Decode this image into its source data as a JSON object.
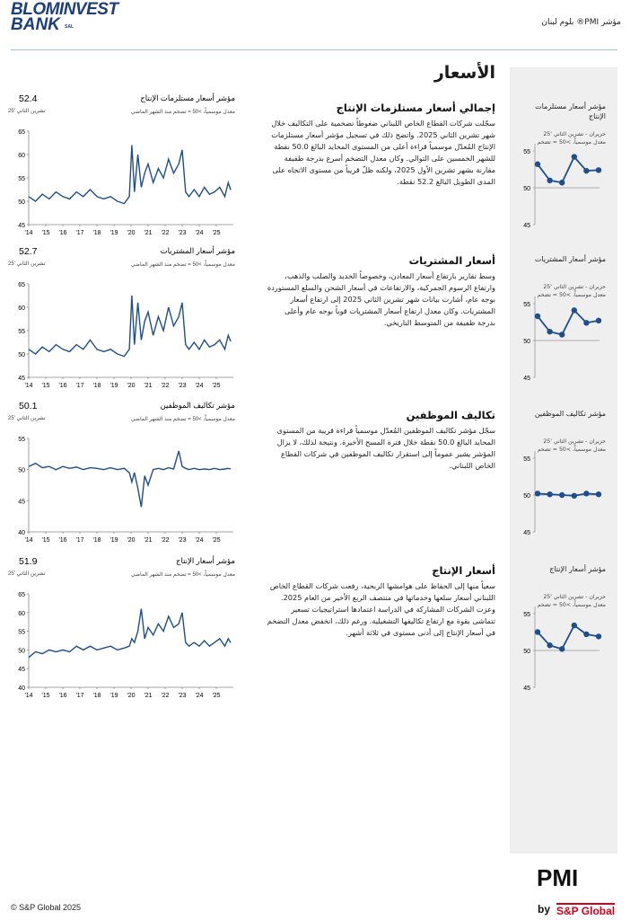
{
  "header": {
    "logo": "BLOMINVEST",
    "logo_line2": "BANK",
    "logo_suffix": "SAL",
    "title": "مؤشر PMI® بلوم لبنان"
  },
  "page_title": "الأسعار",
  "sections": [
    {
      "heading": "إجمالي أسعار مستلزمات الإنتاج",
      "text": "سجّلت شركات القطاع الخاص اللبناني ضغوطاً تضخمية على التكاليف خلال شهر تشرين الثاني 2025. واتضح ذلك في تسجيل مؤشر أسعار مستلزمات الإنتاج المُعدّل موسمياً قراءة أعلى من المستوى المحايد البالغ 50.0 نقطة للشهر الخمسين على التوالي. وكان معدل التضخم أسرع بدرجة طفيفة مقارنة بشهر تشرين الأول 2025، ولكنه ظلّ قريباً من مستوى الاتجاه على المدى الطويل البالغ 52.2 نقطة."
    },
    {
      "heading": "أسعار المشتريات",
      "text": "وسط تقارير بارتفاع أسعار المعادن، وخصوصاً الحديد والصلب والذهب، وارتفاع الرسوم الجمركية، والارتفاعات في أسعار الشحن والسلع المستوردة بوجه عام، أشارت بيانات شهر تشرين الثاني 2025 إلى ارتفاع أسعار المشتريات. وكان معدل ارتفاع أسعار المشتريات قوياً بوجه عام وأعلى بدرجة طفيفة من المتوسط التاريخي."
    },
    {
      "heading": "تكاليف الموظفين",
      "text": "سجّل مؤشر تكاليف الموظفين المُعدّل موسمياً قراءة قريبة من المستوى المحايد البالغ 50.0 نقطة خلال فترة المسح الأخيرة. ونتيجة لذلك، لا يزال المؤشر يشير عموماً إلى استقرار تكاليف الموظفين في شركات القطاع الخاص اللبناني."
    },
    {
      "heading": "أسعار الإنتاج",
      "text": "سعياً منها إلى الحفاظ على هوامشها الربحية، رفعت شركات القطاع الخاص اللبناني أسعار سلعها وخدماتها في منتصف الربع الأخير من العام 2025. وعزت الشركات المشاركة في الدراسة اعتمادها استراتيجيات تسعير تتماشى بقوة مع ارتفاع تكاليفها التشغيلية. ورغم ذلك، انخفض معدل التضخم في أسعار الإنتاج إلى أدنى مستوى في ثلاثة أشهر."
    }
  ],
  "chart_data": [
    {
      "type": "line",
      "title": "مؤشر أسعار مستلزمات الإنتاج",
      "subtitle": "معدل موسمياً، >50 = تضخم منذ الشهر الماضي",
      "latest": 52.4,
      "latest_date": "تشرين الثاني '25",
      "color": "#1f4e8c",
      "x": [
        2014.0,
        2014.4,
        2014.8,
        2015.2,
        2015.6,
        2016.0,
        2016.4,
        2016.8,
        2017.2,
        2017.6,
        2018.0,
        2018.4,
        2018.8,
        2019.2,
        2019.6,
        2019.9,
        2020.05,
        2020.2,
        2020.4,
        2020.6,
        2020.8,
        2021.0,
        2021.3,
        2021.6,
        2021.9,
        2022.2,
        2022.5,
        2022.8,
        2023.0,
        2023.2,
        2023.4,
        2023.7,
        2024.0,
        2024.3,
        2024.6,
        2024.9,
        2025.2,
        2025.5,
        2025.7,
        2025.85
      ],
      "values": [
        51,
        50,
        51.5,
        50.5,
        52,
        51,
        50.5,
        52,
        51,
        52.5,
        51,
        50.5,
        51,
        50,
        49.5,
        51,
        62,
        52,
        60,
        53,
        56,
        58,
        54,
        57,
        55,
        59,
        56,
        58,
        61,
        52,
        51,
        52.5,
        51,
        53,
        51.5,
        52,
        53,
        51,
        54,
        52.4
      ],
      "xlim": [
        2014,
        2026
      ],
      "xticks": [
        {
          "value": 2014,
          "label": "'14"
        },
        {
          "value": 2015,
          "label": "'15"
        },
        {
          "value": 2016,
          "label": "'16"
        },
        {
          "value": 2017,
          "label": "'17"
        },
        {
          "value": 2018,
          "label": "'18"
        },
        {
          "value": 2019,
          "label": "'19"
        },
        {
          "value": 2020,
          "label": "'20"
        },
        {
          "value": 2021,
          "label": "'21"
        },
        {
          "value": 2022,
          "label": "'22"
        },
        {
          "value": 2023,
          "label": "'23"
        },
        {
          "value": 2024,
          "label": "'24"
        },
        {
          "value": 2025,
          "label": "'25"
        }
      ],
      "ylim": [
        45,
        65
      ],
      "yticks": [
        45,
        50,
        55,
        60,
        65
      ]
    },
    {
      "type": "line",
      "title": "مؤشر أسعار المشتريات",
      "subtitle": "معدل موسمياً، >50 = تضخم منذ الشهر الماضي",
      "latest": 52.7,
      "latest_date": "تشرين الثاني '25",
      "color": "#1f4e8c",
      "x": [
        2014.0,
        2014.4,
        2014.8,
        2015.2,
        2015.6,
        2016.0,
        2016.4,
        2016.8,
        2017.2,
        2017.6,
        2018.0,
        2018.4,
        2018.8,
        2019.2,
        2019.6,
        2019.9,
        2020.05,
        2020.2,
        2020.4,
        2020.6,
        2020.8,
        2021.0,
        2021.3,
        2021.6,
        2021.9,
        2022.2,
        2022.5,
        2022.8,
        2023.0,
        2023.2,
        2023.4,
        2023.7,
        2024.0,
        2024.3,
        2024.6,
        2024.9,
        2025.2,
        2025.5,
        2025.7,
        2025.85
      ],
      "values": [
        51,
        50,
        51.5,
        50.5,
        52,
        51,
        50.5,
        52,
        51,
        53,
        51,
        50.5,
        51,
        50,
        49.5,
        51,
        62.5,
        52,
        61,
        53,
        57,
        59,
        54,
        58,
        55,
        60,
        56,
        58,
        61,
        52,
        51,
        52.5,
        51,
        53,
        51.5,
        52,
        53,
        51,
        54,
        52.7
      ],
      "xlim": [
        2014,
        2026
      ],
      "xticks": [
        {
          "value": 2014,
          "label": "'14"
        },
        {
          "value": 2015,
          "label": "'15"
        },
        {
          "value": 2016,
          "label": "'16"
        },
        {
          "value": 2017,
          "label": "'17"
        },
        {
          "value": 2018,
          "label": "'18"
        },
        {
          "value": 2019,
          "label": "'19"
        },
        {
          "value": 2020,
          "label": "'20"
        },
        {
          "value": 2021,
          "label": "'21"
        },
        {
          "value": 2022,
          "label": "'22"
        },
        {
          "value": 2023,
          "label": "'23"
        },
        {
          "value": 2024,
          "label": "'24"
        },
        {
          "value": 2025,
          "label": "'25"
        }
      ],
      "ylim": [
        45,
        65
      ],
      "yticks": [
        45,
        50,
        55,
        60,
        65
      ]
    },
    {
      "type": "line",
      "title": "مؤشر تكاليف الموظفين",
      "subtitle": "معدل موسمياً، >50 = تضخم منذ الشهر الماضي",
      "latest": 50.1,
      "latest_date": "تشرين الثاني '25",
      "color": "#1f4e8c",
      "x": [
        2014.0,
        2014.4,
        2014.8,
        2015.2,
        2015.6,
        2016.0,
        2016.4,
        2016.8,
        2017.2,
        2017.6,
        2018.0,
        2018.4,
        2018.8,
        2019.2,
        2019.6,
        2019.9,
        2020.05,
        2020.2,
        2020.4,
        2020.6,
        2020.8,
        2021.0,
        2021.3,
        2021.6,
        2021.9,
        2022.2,
        2022.5,
        2022.8,
        2023.0,
        2023.2,
        2023.4,
        2023.7,
        2024.0,
        2024.3,
        2024.6,
        2024.9,
        2025.2,
        2025.5,
        2025.7,
        2025.85
      ],
      "values": [
        50.5,
        51,
        50.3,
        50.5,
        50,
        50.5,
        50.2,
        50.4,
        50,
        50.3,
        50.2,
        50,
        50.3,
        50,
        50.2,
        49.5,
        48,
        49.5,
        47,
        44,
        49,
        47.5,
        50,
        50.2,
        50,
        50.3,
        50.1,
        53,
        50.5,
        50.2,
        50,
        50.2,
        50,
        50.1,
        50,
        50.2,
        50,
        50.1,
        50.2,
        50.1
      ],
      "xlim": [
        2014,
        2026
      ],
      "xticks": [
        {
          "value": 2014,
          "label": "'14"
        },
        {
          "value": 2015,
          "label": "'15"
        },
        {
          "value": 2016,
          "label": "'16"
        },
        {
          "value": 2017,
          "label": "'17"
        },
        {
          "value": 2018,
          "label": "'18"
        },
        {
          "value": 2019,
          "label": "'19"
        },
        {
          "value": 2020,
          "label": "'20"
        },
        {
          "value": 2021,
          "label": "'21"
        },
        {
          "value": 2022,
          "label": "'22"
        },
        {
          "value": 2023,
          "label": "'23"
        },
        {
          "value": 2024,
          "label": "'24"
        },
        {
          "value": 2025,
          "label": "'25"
        }
      ],
      "ylim": [
        40,
        55
      ],
      "yticks": [
        40,
        45,
        50,
        55
      ]
    },
    {
      "type": "line",
      "title": "مؤشر أسعار الإنتاج",
      "subtitle": "معدل موسمياً، >50 = تضخم منذ الشهر الماضي",
      "latest": 51.9,
      "latest_date": "تشرين الثاني '25",
      "color": "#1f4e8c",
      "x": [
        2014.0,
        2014.4,
        2014.8,
        2015.2,
        2015.6,
        2016.0,
        2016.4,
        2016.8,
        2017.2,
        2017.6,
        2018.0,
        2018.4,
        2018.8,
        2019.2,
        2019.6,
        2019.9,
        2020.05,
        2020.2,
        2020.4,
        2020.6,
        2020.8,
        2021.0,
        2021.3,
        2021.6,
        2021.9,
        2022.2,
        2022.5,
        2022.8,
        2023.0,
        2023.2,
        2023.4,
        2023.7,
        2024.0,
        2024.3,
        2024.6,
        2024.9,
        2025.2,
        2025.5,
        2025.7,
        2025.85
      ],
      "values": [
        48,
        49.5,
        49,
        50,
        49.5,
        50,
        49.5,
        51,
        50,
        51,
        50,
        50.5,
        51,
        50,
        50.5,
        51,
        53,
        52,
        55,
        61,
        53,
        56,
        54,
        57,
        55,
        59,
        56,
        57,
        60,
        52,
        51,
        52,
        51,
        52.5,
        51,
        52,
        53,
        51,
        53,
        51.9
      ],
      "xlim": [
        2014,
        2026
      ],
      "xticks": [
        {
          "value": 2014,
          "label": "'14"
        },
        {
          "value": 2015,
          "label": "'15"
        },
        {
          "value": 2016,
          "label": "'16"
        },
        {
          "value": 2017,
          "label": "'17"
        },
        {
          "value": 2018,
          "label": "'18"
        },
        {
          "value": 2019,
          "label": "'19"
        },
        {
          "value": 2020,
          "label": "'20"
        },
        {
          "value": 2021,
          "label": "'21"
        },
        {
          "value": 2022,
          "label": "'22"
        },
        {
          "value": 2023,
          "label": "'23"
        },
        {
          "value": 2024,
          "label": "'24"
        },
        {
          "value": 2025,
          "label": "'25"
        }
      ],
      "ylim": [
        40,
        65
      ],
      "yticks": [
        40,
        45,
        50,
        55,
        60,
        65
      ]
    },
    {
      "type": "sparkline",
      "title": "مؤشر أسعار مستلزمات الإنتاج",
      "subtitle": "حزيران - تشرين الثاني '25",
      "note": "معدل موسمياً، >50 = تضخم",
      "color": "#1f4e8c",
      "values": [
        53.2,
        51.0,
        50.7,
        54.2,
        52.3,
        52.4
      ],
      "ylim": [
        45,
        55
      ],
      "yticks": [
        45,
        50,
        55
      ],
      "reference": 50
    },
    {
      "type": "sparkline",
      "title": "مؤشر أسعار المشتريات",
      "subtitle": "حزيران - تشرين الثاني '25",
      "note": "معدل موسمياً، >50 = تضخم",
      "color": "#1f4e8c",
      "values": [
        53.3,
        51.2,
        50.8,
        54.1,
        52.4,
        52.7
      ],
      "ylim": [
        45,
        55
      ],
      "yticks": [
        45,
        50,
        55
      ],
      "reference": 50
    },
    {
      "type": "sparkline",
      "title": "مؤشر تكاليف الموظفين",
      "subtitle": "حزيران - تشرين الثاني '25",
      "note": "معدل موسمياً، >50 = تضخم",
      "color": "#1f4e8c",
      "values": [
        50.2,
        50.1,
        50.0,
        49.9,
        50.2,
        50.1
      ],
      "ylim": [
        45,
        55
      ],
      "yticks": [
        45,
        50,
        55
      ],
      "reference": 50
    },
    {
      "type": "sparkline",
      "title": "مؤشر أسعار الإنتاج",
      "subtitle": "حزيران - تشرين الثاني '25",
      "note": "معدل موسمياً، >50 = تضخم",
      "color": "#1f4e8c",
      "values": [
        52.5,
        50.7,
        50.2,
        53.4,
        52.2,
        51.9
      ],
      "ylim": [
        45,
        55
      ],
      "yticks": [
        45,
        50,
        55
      ],
      "reference": 50
    }
  ],
  "footer": {
    "copyright": "© S&P Global 2025",
    "brand": "PMI",
    "by": "by",
    "brand2": "S&P Global"
  }
}
